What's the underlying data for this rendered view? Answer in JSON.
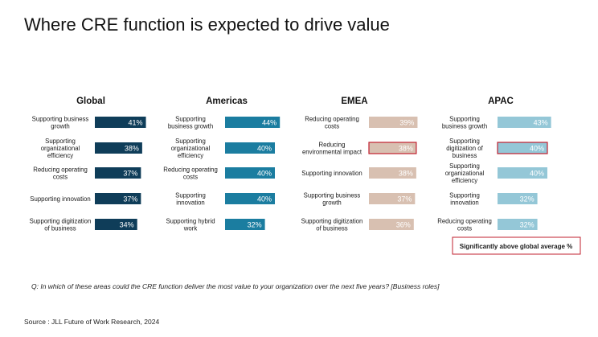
{
  "title": "Where CRE function is expected to drive value",
  "question": "Q: In which of these areas could the CRE function deliver the most value to your organization over the next five years? [Business roles]",
  "source": "Source : JLL Future of Work Research, 2024",
  "legend_note": "Significantly above global average %",
  "colors": {
    "global": "#0f3d59",
    "americas": "#1b7da0",
    "emea": "#d8c0b1",
    "apac": "#94c7d7",
    "highlight": "#c0202f"
  },
  "chart_data": [
    {
      "type": "bar",
      "orientation": "horizontal",
      "title": "Global",
      "categories": [
        [
          "Supporting business",
          "growth"
        ],
        [
          "Supporting",
          "organizational",
          "efficiency"
        ],
        [
          "Reducing operating",
          "costs"
        ],
        [
          "Supporting innovation"
        ],
        [
          "Supporting digitization",
          "of business"
        ]
      ],
      "values": [
        41,
        38,
        37,
        37,
        34
      ],
      "labels": [
        "41%",
        "38%",
        "37%",
        "37%",
        "34%"
      ],
      "highlighted": [
        false,
        false,
        false,
        false,
        false
      ]
    },
    {
      "type": "bar",
      "orientation": "horizontal",
      "title": "Americas",
      "categories": [
        [
          "Supporting",
          "business growth"
        ],
        [
          "Supporting",
          "organizational",
          "efficiency"
        ],
        [
          "Reducing operating",
          "costs"
        ],
        [
          "Supporting",
          "innovation"
        ],
        [
          "Supporting hybrid",
          "work"
        ]
      ],
      "values": [
        44,
        40,
        40,
        40,
        32
      ],
      "labels": [
        "44%",
        "40%",
        "40%",
        "40%",
        "32%"
      ],
      "highlighted": [
        false,
        false,
        false,
        false,
        false
      ]
    },
    {
      "type": "bar",
      "orientation": "horizontal",
      "title": "EMEA",
      "categories": [
        [
          "Reducing operating",
          "costs"
        ],
        [
          "Reducing",
          "environmental impact"
        ],
        [
          "Supporting innovation"
        ],
        [
          "Supporting business",
          "growth"
        ],
        [
          "Supporting digitization",
          "of business"
        ]
      ],
      "values": [
        39,
        38,
        38,
        37,
        36
      ],
      "labels": [
        "39%",
        "38%",
        "38%",
        "37%",
        "36%"
      ],
      "highlighted": [
        false,
        true,
        false,
        false,
        false
      ]
    },
    {
      "type": "bar",
      "orientation": "horizontal",
      "title": "APAC",
      "categories": [
        [
          "Supporting",
          "business growth"
        ],
        [
          "Supporting",
          "digitization of",
          "business"
        ],
        [
          "Supporting",
          "organizational",
          "efficiency"
        ],
        [
          "Supporting",
          "innovation"
        ],
        [
          "Reducing operating",
          "costs"
        ]
      ],
      "values": [
        43,
        40,
        40,
        32,
        32
      ],
      "labels": [
        "43%",
        "40%",
        "40%",
        "32%",
        "32%"
      ],
      "highlighted": [
        false,
        true,
        false,
        false,
        false
      ]
    }
  ]
}
